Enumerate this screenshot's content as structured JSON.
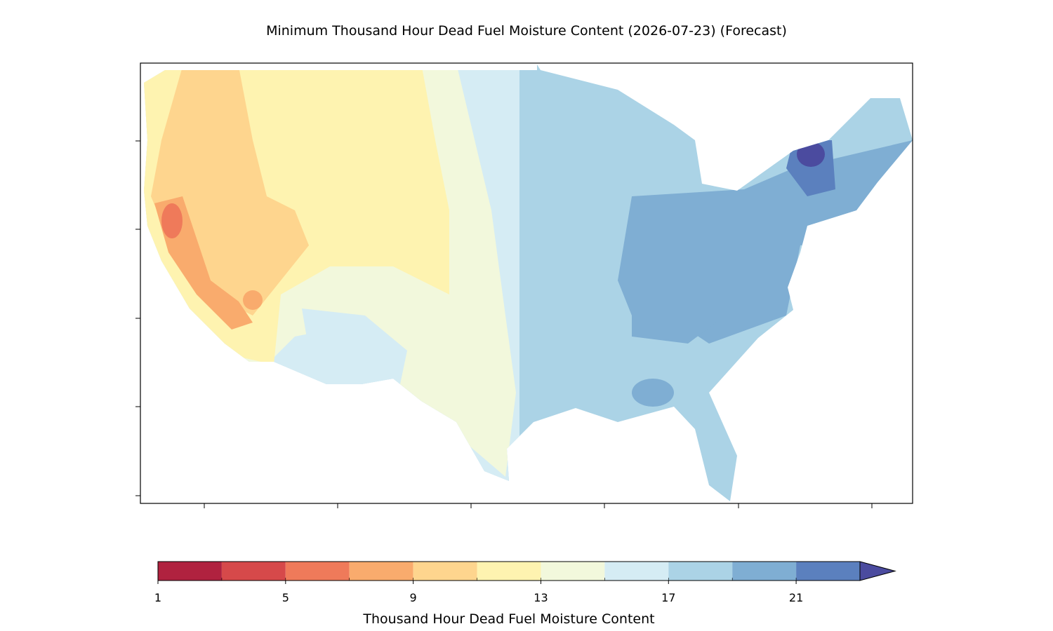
{
  "title": "Minimum Thousand Hour Dead Fuel Moisture Content (2026-07-23) (Forecast)",
  "colorbar": {
    "label": "Thousand Hour Dead Fuel Moisture Content",
    "levels": [
      1,
      3,
      5,
      7,
      9,
      11,
      13,
      15,
      17,
      19,
      21,
      23
    ],
    "colors": [
      "#b0223f",
      "#d6494a",
      "#ef7a5a",
      "#f9ab6d",
      "#fed58e",
      "#fef3b0",
      "#f2f8dc",
      "#d5ecf4",
      "#abd3e6",
      "#7faed3",
      "#5b80be"
    ],
    "extend": "max",
    "extend_color": "#4b4b9f",
    "ticks": [
      1,
      5,
      9,
      13,
      17,
      21
    ]
  }
}
